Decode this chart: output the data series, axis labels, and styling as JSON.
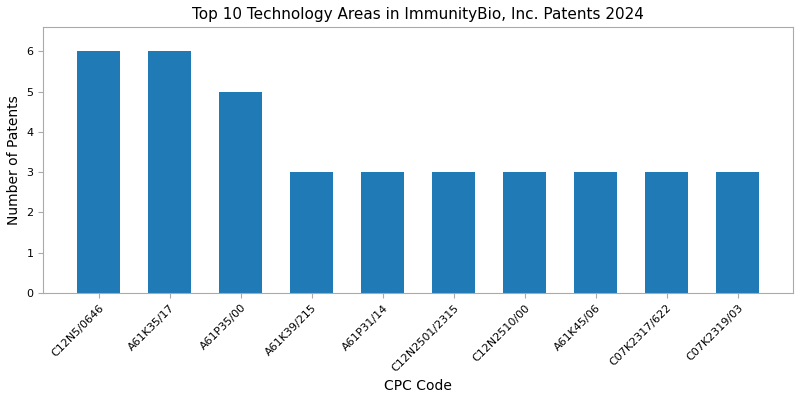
{
  "title": "Top 10 Technology Areas in ImmunityBio, Inc. Patents 2024",
  "xlabel": "CPC Code",
  "ylabel": "Number of Patents",
  "categories": [
    "C12N5/0646",
    "A61K35/17",
    "A61P35/00",
    "A61K39/215",
    "A61P31/14",
    "C12N2501/2315",
    "C12N2510/00",
    "A61K45/06",
    "C07K2317/622",
    "C07K2319/03"
  ],
  "values": [
    6,
    6,
    5,
    3,
    3,
    3,
    3,
    3,
    3,
    3
  ],
  "bar_color": "#1f7ab5",
  "ylim": [
    0,
    6.6
  ],
  "yticks": [
    0,
    1,
    2,
    3,
    4,
    5,
    6
  ],
  "title_fontsize": 11,
  "label_fontsize": 10,
  "tick_fontsize": 8,
  "bar_width": 0.6,
  "figsize": [
    8.0,
    4.0
  ],
  "dpi": 100
}
